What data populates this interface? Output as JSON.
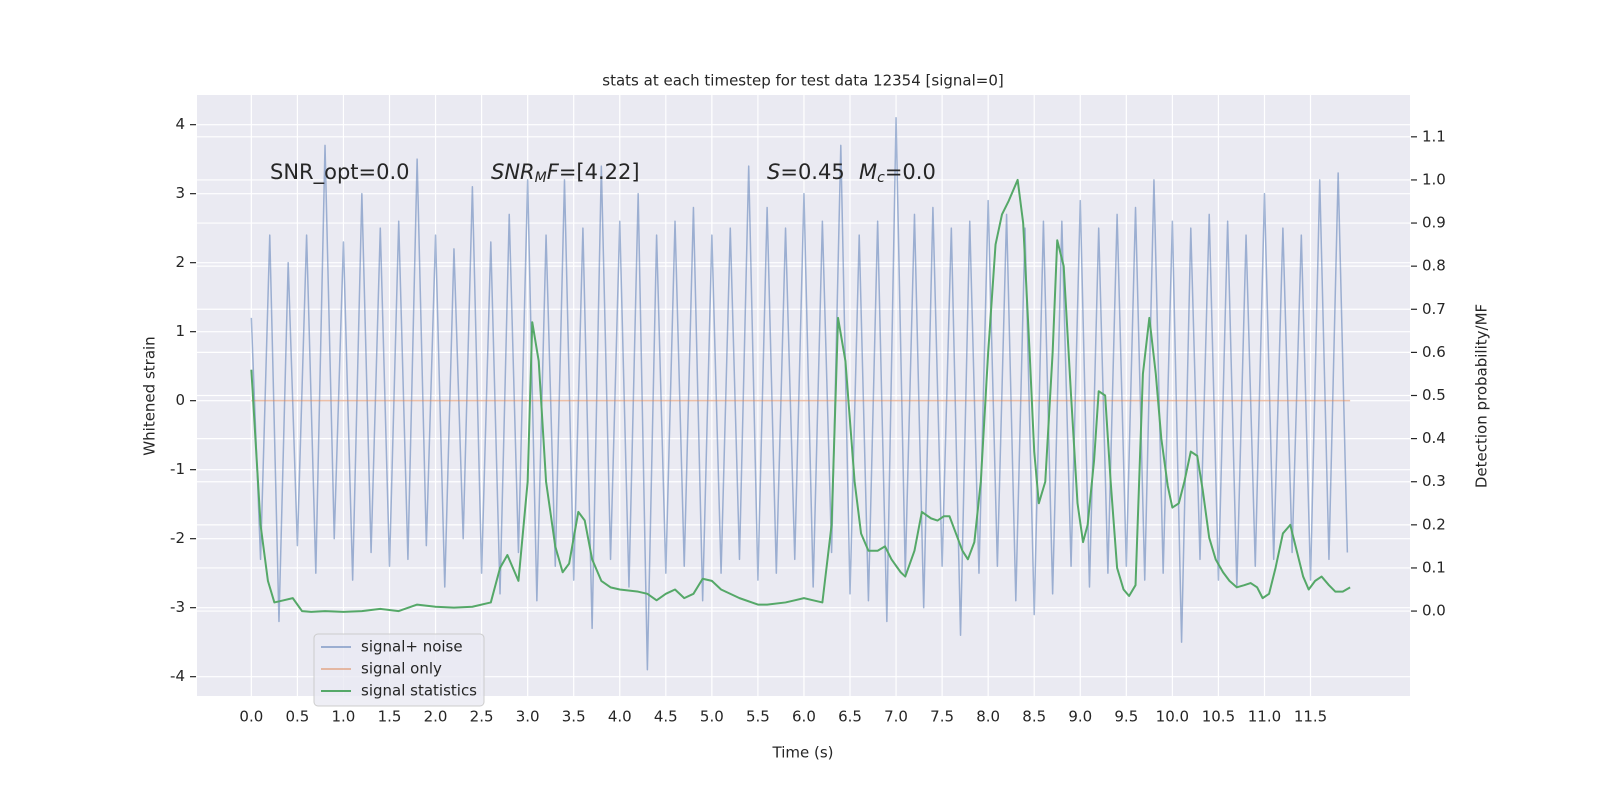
{
  "chart_data": {
    "type": "line",
    "title": "stats at each timestep for test data 12354 [signal=0]",
    "xlabel": "Time (s)",
    "ylabel": "Whitened strain",
    "y2label": "Detection probability/MF",
    "grid": true,
    "legend": "lower left",
    "xlim": [
      -0.59,
      12.58
    ],
    "ylim": [
      -4.28,
      4.43
    ],
    "y2lim": [
      -0.197,
      1.197
    ],
    "xticks": [
      {
        "value": 0,
        "label": "0.0"
      },
      {
        "value": 0.5,
        "label": "0.5"
      },
      {
        "value": 1,
        "label": "1.0"
      },
      {
        "value": 1.5,
        "label": "1.5"
      },
      {
        "value": 2,
        "label": "2.0"
      },
      {
        "value": 2.5,
        "label": "2.5"
      },
      {
        "value": 3,
        "label": "3.0"
      },
      {
        "value": 3.5,
        "label": "3.5"
      },
      {
        "value": 4,
        "label": "4.0"
      },
      {
        "value": 4.5,
        "label": "4.5"
      },
      {
        "value": 5,
        "label": "5.0"
      },
      {
        "value": 5.5,
        "label": "5.5"
      },
      {
        "value": 6,
        "label": "6.0"
      },
      {
        "value": 6.5,
        "label": "6.5"
      },
      {
        "value": 7,
        "label": "7.0"
      },
      {
        "value": 7.5,
        "label": "7.5"
      },
      {
        "value": 8,
        "label": "8.0"
      },
      {
        "value": 8.5,
        "label": "8.5"
      },
      {
        "value": 9,
        "label": "9.0"
      },
      {
        "value": 9.5,
        "label": "9.5"
      },
      {
        "value": 10,
        "label": "10.0"
      },
      {
        "value": 10.5,
        "label": "10.5"
      },
      {
        "value": 11,
        "label": "11.0"
      },
      {
        "value": 11.5,
        "label": "11.5"
      }
    ],
    "yticks": [
      -4,
      -3,
      -2,
      -1,
      0,
      1,
      2,
      3,
      4
    ],
    "y2ticks": [
      {
        "value": 0,
        "label": "0.0"
      },
      {
        "value": 0.1,
        "label": "0.1"
      },
      {
        "value": 0.2,
        "label": "0.2"
      },
      {
        "value": 0.3,
        "label": "0.3"
      },
      {
        "value": 0.4,
        "label": "0.4"
      },
      {
        "value": 0.5,
        "label": "0.5"
      },
      {
        "value": 0.6,
        "label": "0.6"
      },
      {
        "value": 0.7,
        "label": "0.7"
      },
      {
        "value": 0.8,
        "label": "0.8"
      },
      {
        "value": 0.9,
        "label": "0.9"
      },
      {
        "value": 1,
        "label": "1.0"
      },
      {
        "value": 1.1,
        "label": "1.1"
      }
    ],
    "annotations": [
      {
        "parts": [
          {
            "text": "SNR_opt=0.0"
          }
        ]
      },
      {
        "parts": [
          {
            "text": "SNR",
            "italic": true
          },
          {
            "text": "M",
            "italic": true,
            "sub": true
          },
          {
            "text": "F",
            "italic": true
          },
          {
            "text": "=[4.22]"
          }
        ]
      },
      {
        "parts": [
          {
            "text": "S",
            "italic": true
          },
          {
            "text": "=0.45"
          }
        ]
      },
      {
        "parts": [
          {
            "text": "M",
            "italic": true
          },
          {
            "text": "c",
            "italic": true,
            "sub": true
          },
          {
            "text": "=0.0"
          }
        ]
      }
    ],
    "series": [
      {
        "name": "signal+ noise",
        "color": "#4c72b0",
        "opacity": 0.5,
        "axis": "y",
        "x": [
          0,
          0.1,
          0.2,
          0.3,
          0.4,
          0.5,
          0.6,
          0.7,
          0.8,
          0.9,
          1,
          1.1,
          1.2,
          1.3,
          1.4,
          1.5,
          1.6,
          1.7,
          1.8,
          1.9,
          2,
          2.1,
          2.2,
          2.3,
          2.4,
          2.5,
          2.6,
          2.7,
          2.8,
          2.9,
          3,
          3.1,
          3.2,
          3.3,
          3.4,
          3.5,
          3.6,
          3.7,
          3.8,
          3.9,
          4,
          4.1,
          4.2,
          4.3,
          4.4,
          4.5,
          4.6,
          4.7,
          4.8,
          4.9,
          5,
          5.1,
          5.2,
          5.3,
          5.4,
          5.5,
          5.6,
          5.7,
          5.8,
          5.9,
          6,
          6.1,
          6.2,
          6.3,
          6.4,
          6.5,
          6.6,
          6.7,
          6.8,
          6.9,
          7,
          7.1,
          7.2,
          7.3,
          7.4,
          7.5,
          7.6,
          7.7,
          7.8,
          7.9,
          8,
          8.1,
          8.2,
          8.3,
          8.4,
          8.5,
          8.6,
          8.7,
          8.8,
          8.9,
          9,
          9.1,
          9.2,
          9.3,
          9.4,
          9.5,
          9.6,
          9.7,
          9.8,
          9.9,
          10,
          10.1,
          10.2,
          10.3,
          10.4,
          10.5,
          10.6,
          10.7,
          10.8,
          10.9,
          11,
          11.1,
          11.2,
          11.3,
          11.4,
          11.5,
          11.6,
          11.7,
          11.8,
          11.9
        ],
        "values": [
          1.2,
          -2.3,
          2.4,
          -3.2,
          2.0,
          -2.1,
          2.4,
          -2.5,
          3.7,
          -2.0,
          2.3,
          -2.6,
          3.0,
          -2.2,
          2.5,
          -2.4,
          2.6,
          -2.3,
          3.5,
          -2.1,
          2.4,
          -2.7,
          2.2,
          -2.0,
          3.1,
          -2.5,
          2.3,
          -2.8,
          2.7,
          -2.2,
          3.2,
          -2.9,
          2.4,
          -2.4,
          3.2,
          -2.6,
          2.5,
          -3.3,
          3.4,
          -2.3,
          2.6,
          -2.7,
          3.0,
          -3.9,
          2.4,
          -2.5,
          2.6,
          -2.4,
          2.8,
          -2.9,
          2.4,
          -2.5,
          2.5,
          -2.3,
          3.4,
          -2.6,
          2.8,
          -2.5,
          2.5,
          -2.3,
          3.0,
          -2.7,
          2.6,
          -2.2,
          3.7,
          -2.8,
          2.4,
          -2.9,
          2.6,
          -3.2,
          4.1,
          -2.5,
          2.7,
          -3.0,
          2.8,
          -2.4,
          2.5,
          -3.4,
          2.6,
          -2.5,
          2.9,
          -2.4,
          2.7,
          -2.9,
          2.5,
          -3.1,
          2.6,
          -2.8,
          2.6,
          -2.4,
          2.9,
          -2.7,
          2.5,
          -2.5,
          2.7,
          -2.4,
          2.8,
          -2.6,
          3.2,
          -2.5,
          2.6,
          -3.5,
          2.5,
          -2.3,
          2.7,
          -2.6,
          2.6,
          -2.7,
          2.4,
          -2.4,
          3.0,
          -2.3,
          2.5,
          -2.2,
          2.4,
          -2.6,
          3.2,
          -2.3,
          3.3,
          -2.2
        ]
      },
      {
        "name": "signal only",
        "color": "#dd8452",
        "opacity": 0.5,
        "axis": "y",
        "x": [
          0,
          11.93
        ],
        "values": [
          0,
          0
        ]
      },
      {
        "name": "signal statistics",
        "color": "#55a868",
        "opacity": 1,
        "axis": "y2",
        "x": [
          0,
          0.1,
          0.18,
          0.25,
          0.35,
          0.45,
          0.55,
          0.65,
          0.8,
          1.0,
          1.2,
          1.4,
          1.6,
          1.8,
          2.0,
          2.2,
          2.4,
          2.6,
          2.7,
          2.78,
          2.9,
          3.0,
          3.05,
          3.12,
          3.2,
          3.3,
          3.38,
          3.45,
          3.55,
          3.62,
          3.7,
          3.8,
          3.9,
          4.0,
          4.2,
          4.3,
          4.4,
          4.5,
          4.6,
          4.7,
          4.8,
          4.9,
          5.0,
          5.1,
          5.3,
          5.5,
          5.6,
          5.8,
          5.9,
          6.0,
          6.1,
          6.2,
          6.3,
          6.37,
          6.45,
          6.55,
          6.62,
          6.7,
          6.8,
          6.88,
          6.95,
          7.05,
          7.1,
          7.2,
          7.28,
          7.38,
          7.45,
          7.52,
          7.58,
          7.65,
          7.72,
          7.78,
          7.85,
          7.92,
          8.0,
          8.08,
          8.15,
          8.22,
          8.32,
          8.38,
          8.45,
          8.5,
          8.55,
          8.62,
          8.7,
          8.75,
          8.82,
          8.9,
          8.97,
          9.03,
          9.08,
          9.15,
          9.2,
          9.27,
          9.33,
          9.4,
          9.47,
          9.53,
          9.6,
          9.68,
          9.75,
          9.82,
          9.88,
          9.95,
          10.0,
          10.07,
          10.13,
          10.2,
          10.27,
          10.33,
          10.4,
          10.47,
          10.55,
          10.62,
          10.7,
          10.78,
          10.85,
          10.92,
          10.98,
          11.05,
          11.12,
          11.2,
          11.28,
          11.35,
          11.42,
          11.48,
          11.55,
          11.62,
          11.7,
          11.77,
          11.85,
          11.93
        ],
        "values": [
          0.56,
          0.2,
          0.07,
          0.02,
          0.025,
          0.03,
          0.0,
          -0.002,
          0.0,
          -0.002,
          0.0,
          0.005,
          0.0,
          0.015,
          0.01,
          0.008,
          0.01,
          0.02,
          0.1,
          0.13,
          0.07,
          0.3,
          0.67,
          0.58,
          0.3,
          0.15,
          0.09,
          0.11,
          0.23,
          0.21,
          0.12,
          0.07,
          0.055,
          0.05,
          0.045,
          0.04,
          0.025,
          0.04,
          0.05,
          0.03,
          0.04,
          0.075,
          0.07,
          0.05,
          0.03,
          0.015,
          0.015,
          0.02,
          0.025,
          0.03,
          0.025,
          0.02,
          0.2,
          0.68,
          0.58,
          0.3,
          0.18,
          0.14,
          0.14,
          0.15,
          0.12,
          0.09,
          0.08,
          0.14,
          0.23,
          0.215,
          0.21,
          0.22,
          0.22,
          0.18,
          0.14,
          0.12,
          0.16,
          0.3,
          0.6,
          0.85,
          0.92,
          0.95,
          1.0,
          0.9,
          0.6,
          0.37,
          0.25,
          0.3,
          0.6,
          0.86,
          0.8,
          0.5,
          0.25,
          0.16,
          0.2,
          0.35,
          0.51,
          0.5,
          0.3,
          0.1,
          0.05,
          0.035,
          0.06,
          0.55,
          0.68,
          0.55,
          0.4,
          0.29,
          0.24,
          0.25,
          0.3,
          0.37,
          0.36,
          0.28,
          0.17,
          0.12,
          0.09,
          0.07,
          0.055,
          0.06,
          0.065,
          0.055,
          0.03,
          0.04,
          0.1,
          0.18,
          0.2,
          0.14,
          0.08,
          0.05,
          0.07,
          0.08,
          0.06,
          0.045,
          0.045,
          0.055
        ]
      }
    ]
  }
}
